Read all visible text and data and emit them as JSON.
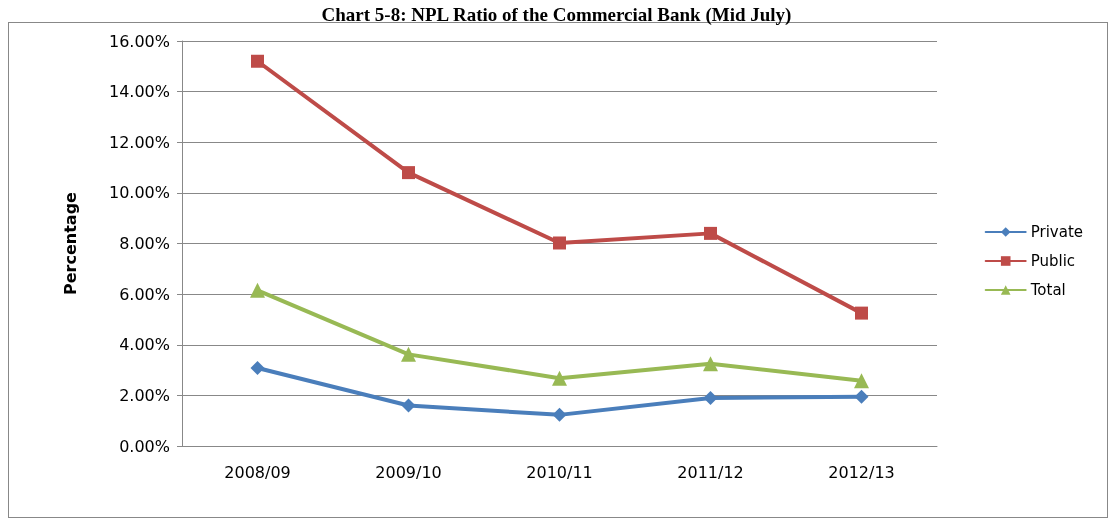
{
  "chart_data": {
    "type": "line",
    "title": "Chart 5-8: NPL Ratio of the Commercial Bank (Mid July)",
    "ylabel": "Percentage",
    "categories": [
      "2008/09",
      "2009/10",
      "2010/11",
      "2011/12",
      "2012/13"
    ],
    "series": [
      {
        "name": "Private",
        "color": "#4a7ebb",
        "marker": "diamond",
        "values": [
          3.08,
          1.6,
          1.23,
          1.9,
          1.95
        ]
      },
      {
        "name": "Public",
        "color": "#be4b48",
        "marker": "square",
        "values": [
          15.2,
          10.8,
          8.02,
          8.4,
          5.25
        ]
      },
      {
        "name": "Total",
        "color": "#98b954",
        "marker": "triangle",
        "values": [
          6.15,
          3.62,
          2.68,
          3.25,
          2.58
        ]
      }
    ],
    "ylim": [
      0,
      16
    ],
    "yticks": [
      {
        "value": 0,
        "label": "0.00%"
      },
      {
        "value": 2,
        "label": "2.00%"
      },
      {
        "value": 4,
        "label": "4.00%"
      },
      {
        "value": 6,
        "label": "6.00%"
      },
      {
        "value": 8,
        "label": "8.00%"
      },
      {
        "value": 10,
        "label": "10.00%"
      },
      {
        "value": 12,
        "label": "12.00%"
      },
      {
        "value": 14,
        "label": "14.00%"
      },
      {
        "value": 16,
        "label": "16.00%"
      }
    ],
    "grid": "y",
    "legend": "right",
    "line_style": "solid"
  }
}
